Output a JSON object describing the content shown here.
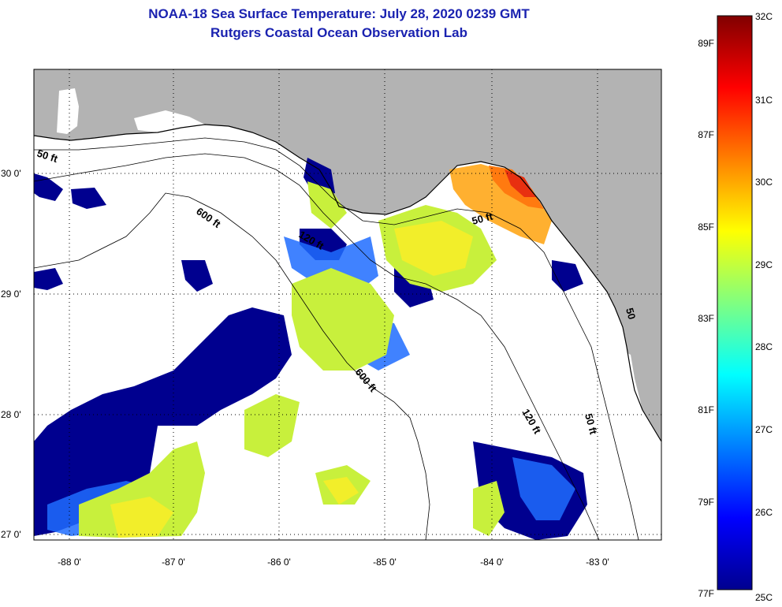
{
  "header": {
    "title": "NOAA-18 Sea Surface Temperature:  July 28, 2020 0239 GMT",
    "subtitle": "Rutgers Coastal Ocean Observation Lab"
  },
  "map": {
    "x_ticks": [
      "-88 0'",
      "-87 0'",
      "-86 0'",
      "-85 0'",
      "-84 0'",
      "-83 0'"
    ],
    "y_ticks": [
      "30 0'",
      "29 0'",
      "28 0'",
      "27 0'"
    ],
    "contour_labels": [
      "50 ft",
      "600 ft",
      "120 ft",
      "50 ft",
      "600 ft",
      "120 ft",
      "50 ft",
      "50"
    ],
    "colors": {
      "land": "#b3b3b3",
      "no_data": "#ffffff",
      "grid": "#000000"
    }
  },
  "colorbar": {
    "celsius_labels": [
      "32C",
      "31C",
      "30C",
      "29C",
      "28C",
      "27C",
      "26C",
      "25C"
    ],
    "fahrenheit_labels": [
      "89F",
      "87F",
      "85F",
      "83F",
      "81F",
      "79F",
      "77F"
    ],
    "gradient": [
      "#00008f",
      "#0000ff",
      "#0080ff",
      "#00ffff",
      "#80ff80",
      "#ffff00",
      "#ff8000",
      "#ff0000",
      "#800000"
    ]
  }
}
